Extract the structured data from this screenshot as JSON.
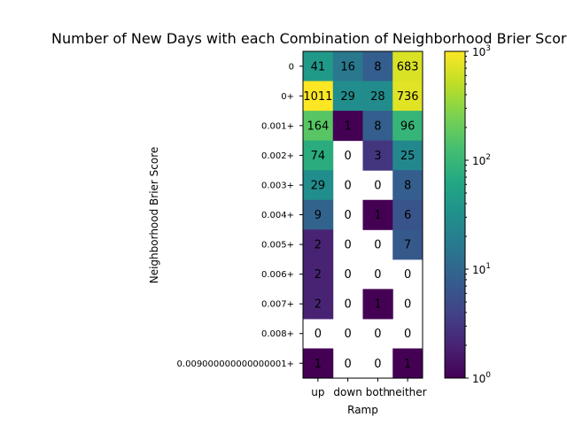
{
  "chart_data": {
    "type": "heatmap",
    "title": "Number of New Days with each Combination of Neighborhood Brier Score",
    "xlabel": "Ramp",
    "ylabel": "Neighborhood Brier Score",
    "x_categories": [
      "up",
      "down",
      "both",
      "neither"
    ],
    "y_categories": [
      "0",
      "0+",
      "0.001+",
      "0.002+",
      "0.003+",
      "0.004+",
      "0.005+",
      "0.006+",
      "0.007+",
      "0.008+",
      "0.009000000000000001+"
    ],
    "values": [
      [
        41,
        16,
        8,
        683
      ],
      [
        1011,
        29,
        28,
        736
      ],
      [
        164,
        1,
        8,
        96
      ],
      [
        74,
        0,
        3,
        25
      ],
      [
        29,
        0,
        0,
        8
      ],
      [
        9,
        0,
        1,
        6
      ],
      [
        2,
        0,
        0,
        7
      ],
      [
        2,
        0,
        0,
        0
      ],
      [
        2,
        0,
        1,
        0
      ],
      [
        0,
        0,
        0,
        0
      ],
      [
        1,
        0,
        0,
        1
      ]
    ],
    "cell_labels": [
      [
        "41",
        "16",
        "8",
        "683"
      ],
      [
        "1011",
        "29",
        "28",
        "736"
      ],
      [
        "164",
        "1",
        "8",
        "96"
      ],
      [
        "74",
        "0",
        "3",
        "25"
      ],
      [
        "29",
        "0",
        "0",
        "8"
      ],
      [
        "9",
        "0",
        "1",
        "6"
      ],
      [
        "2",
        "0",
        "0",
        "7"
      ],
      [
        "2",
        "0",
        "0",
        "0"
      ],
      [
        "2",
        "0",
        "1",
        "0"
      ],
      [
        "0",
        "0",
        "0",
        "0"
      ],
      [
        "1",
        "0",
        "0",
        "1"
      ]
    ],
    "color_scale": {
      "type": "log",
      "min": 1,
      "max": 1000,
      "colormap": "viridis"
    },
    "colorbar": {
      "ticks": [
        "10",
        "10",
        "10",
        "10"
      ],
      "exponents": [
        "0",
        "1",
        "2",
        "3"
      ]
    }
  }
}
